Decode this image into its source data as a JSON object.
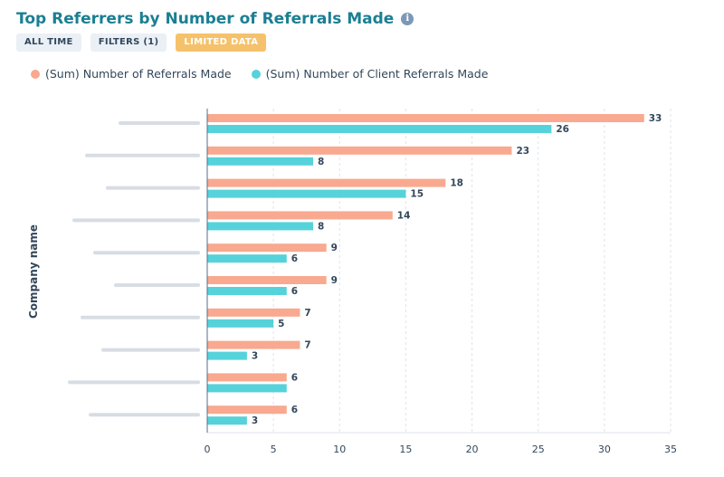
{
  "header": {
    "title": "Top Referrers by Number of Referrals Made",
    "info_icon": "info-icon"
  },
  "chips": {
    "all_time": "ALL TIME",
    "filters": "FILTERS (1)",
    "limited": "LIMITED DATA"
  },
  "colors": {
    "series_referrals": "#f8a98f",
    "series_client": "#56d2da",
    "title": "#1b7f93"
  },
  "chart_data": {
    "type": "bar",
    "orientation": "horizontal",
    "title": "Top Referrers by Number of Referrals Made",
    "ylabel": "Company name",
    "xlabel": "",
    "xlim": [
      0,
      35
    ],
    "xticks": [
      0,
      5,
      10,
      15,
      20,
      25,
      30,
      35
    ],
    "grid": "vertical dashed",
    "legend_position": "top-left",
    "categories": [
      "",
      "",
      "",
      "",
      "",
      "",
      "",
      "",
      "",
      ""
    ],
    "series": [
      {
        "name": "(Sum) Number of Referrals Made",
        "color": "#f8a98f",
        "values": [
          33,
          23,
          18,
          14,
          9,
          9,
          7,
          7,
          6,
          6
        ]
      },
      {
        "name": "(Sum) Number of Client Referrals Made",
        "color": "#56d2da",
        "values": [
          26,
          8,
          15,
          8,
          6,
          6,
          5,
          3,
          6,
          3
        ]
      }
    ],
    "labels_shown": [
      [
        true,
        true
      ],
      [
        true,
        true
      ],
      [
        true,
        true
      ],
      [
        true,
        true
      ],
      [
        true,
        true
      ],
      [
        true,
        true
      ],
      [
        true,
        true
      ],
      [
        true,
        true
      ],
      [
        true,
        false
      ],
      [
        true,
        true
      ]
    ]
  }
}
